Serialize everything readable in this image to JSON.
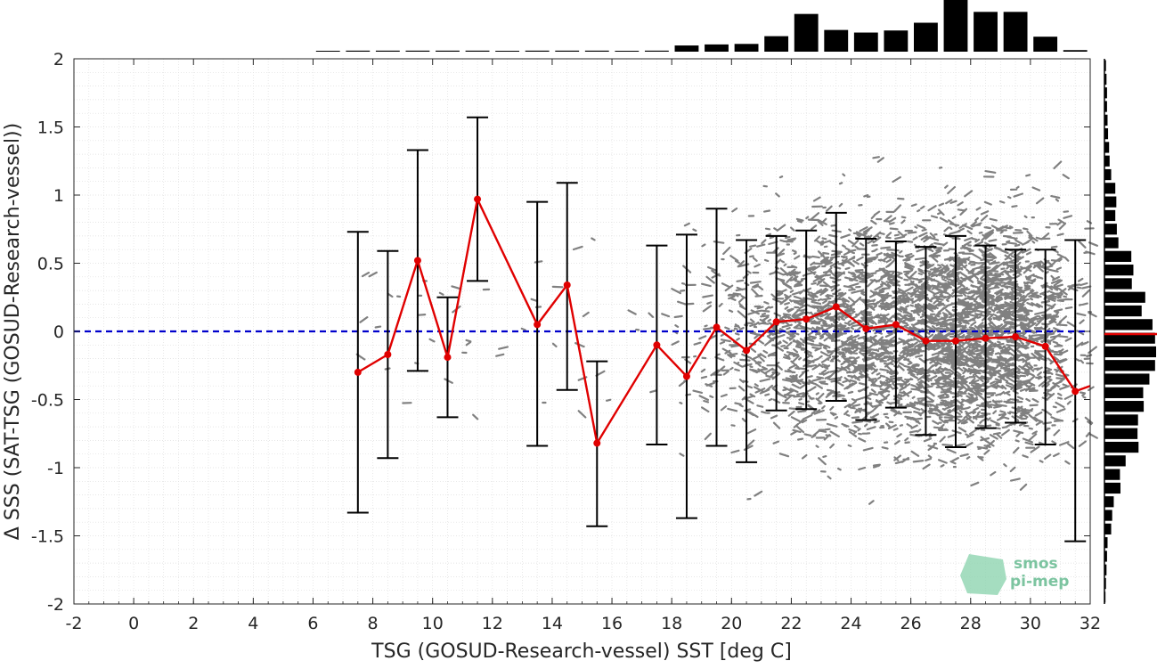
{
  "chart_data": {
    "type": "scatter",
    "title": "",
    "xlabel": "TSG (GOSUD-Research-vessel) SST [deg C]",
    "ylabel": "Δ SSS (SAT-TSG (GOSUD-Research-vessel))",
    "xlim": [
      -2,
      32
    ],
    "ylim": [
      -2,
      2
    ],
    "x_ticks": [
      -2,
      0,
      2,
      4,
      6,
      8,
      10,
      12,
      14,
      16,
      18,
      20,
      22,
      24,
      26,
      28,
      30,
      32
    ],
    "y_ticks": [
      2,
      1.5,
      1,
      0.5,
      0,
      -0.5,
      -1,
      -1.5,
      -2
    ],
    "y_tick_labels": [
      "2",
      "1.5",
      "1",
      "0.5",
      "0",
      "-0.5",
      "-1",
      "-1.5",
      "-2"
    ],
    "grid": true,
    "reference_line": {
      "y": 0,
      "style": "dashed",
      "color": "#0000cc"
    },
    "binned_mean": {
      "color": "#e00000",
      "x": [
        7.5,
        8.5,
        9.5,
        10.5,
        11.5,
        13.5,
        14.5,
        15.5,
        17.5,
        18.5,
        19.5,
        20.5,
        21.5,
        22.5,
        23.5,
        24.5,
        25.5,
        26.5,
        27.5,
        28.5,
        29.5,
        30.5,
        31.5,
        32
      ],
      "mean": [
        -0.3,
        -0.17,
        0.52,
        -0.19,
        0.97,
        0.05,
        0.34,
        -0.82,
        -0.1,
        -0.33,
        0.03,
        -0.14,
        0.07,
        0.09,
        0.18,
        0.02,
        0.05,
        -0.07,
        -0.07,
        -0.05,
        -0.04,
        -0.11,
        -0.44,
        -0.4
      ]
    },
    "error_bars": {
      "color": "#000000",
      "x": [
        7.5,
        8.5,
        9.5,
        10.5,
        11.5,
        13.5,
        14.5,
        15.5,
        17.5,
        18.5,
        19.5,
        20.5,
        21.5,
        22.5,
        23.5,
        24.5,
        25.5,
        26.5,
        27.5,
        28.5,
        29.5,
        30.5,
        31.5
      ],
      "upper": [
        0.73,
        0.59,
        1.33,
        0.25,
        1.57,
        0.95,
        1.09,
        -0.22,
        0.63,
        0.71,
        0.9,
        0.67,
        0.7,
        0.74,
        0.87,
        0.68,
        0.66,
        0.62,
        0.7,
        0.63,
        0.6,
        0.6,
        0.67
      ],
      "lower": [
        -1.33,
        -0.93,
        -0.29,
        -0.63,
        0.37,
        -0.84,
        -0.43,
        -1.43,
        -0.83,
        -1.37,
        -0.84,
        -0.96,
        -0.58,
        -0.57,
        -0.51,
        -0.65,
        -0.56,
        -0.76,
        -0.85,
        -0.71,
        -0.67,
        -0.83,
        -1.54
      ]
    },
    "scatter_color": "#808080",
    "top_histogram": {
      "x": [
        6.5,
        7.5,
        8.5,
        9.5,
        10.5,
        11.5,
        12.5,
        13.5,
        14.5,
        15.5,
        16.5,
        17.5,
        18.5,
        19.5,
        20.5,
        21.5,
        22.5,
        23.5,
        24.5,
        25.5,
        26.5,
        27.5,
        28.5,
        29.5,
        30.5,
        31.5
      ],
      "counts": [
        0.01,
        0.02,
        0.02,
        0.02,
        0.02,
        0.02,
        0.01,
        0.02,
        0.02,
        0.02,
        0.01,
        0.02,
        0.12,
        0.14,
        0.15,
        0.3,
        0.73,
        0.42,
        0.37,
        0.41,
        0.56,
        1.0,
        0.77,
        0.77,
        0.29,
        0.03
      ]
    },
    "right_histogram": {
      "y": [
        1.95,
        1.85,
        1.75,
        1.65,
        1.55,
        1.45,
        1.35,
        1.25,
        1.15,
        1.05,
        0.95,
        0.85,
        0.75,
        0.65,
        0.55,
        0.45,
        0.35,
        0.25,
        0.15,
        0.05,
        -0.05,
        -0.15,
        -0.25,
        -0.35,
        -0.45,
        -0.55,
        -0.65,
        -0.75,
        -0.85,
        -0.95,
        -1.05,
        -1.15,
        -1.25,
        -1.35,
        -1.45,
        -1.55,
        -1.65,
        -1.75,
        -1.85,
        -1.95
      ],
      "counts": [
        0.03,
        0.04,
        0.05,
        0.05,
        0.06,
        0.07,
        0.09,
        0.1,
        0.13,
        0.21,
        0.23,
        0.21,
        0.24,
        0.27,
        0.52,
        0.56,
        0.53,
        0.79,
        0.72,
        0.93,
        0.98,
        1.0,
        0.98,
        0.87,
        0.75,
        0.76,
        0.65,
        0.64,
        0.66,
        0.41,
        0.3,
        0.31,
        0.18,
        0.15,
        0.13,
        0.06,
        0.05,
        0.04,
        0.03,
        0.02
      ]
    },
    "right_histogram_mean": {
      "y": -0.02,
      "color": "#e00000"
    }
  },
  "logo": {
    "line1": "smos",
    "line2": "pi-mep"
  }
}
